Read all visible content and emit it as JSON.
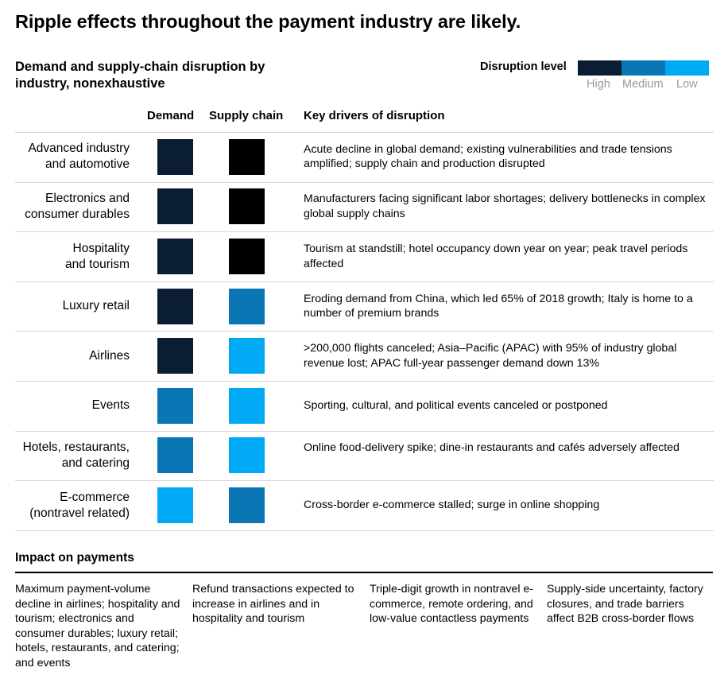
{
  "title": "Ripple effects throughout the payment industry are likely.",
  "subtitle": "Demand and supply-chain disruption by industry, nonexhaustive",
  "legend": {
    "label": "Disruption level",
    "levels": [
      {
        "name": "High",
        "color": "#0b1d33"
      },
      {
        "name": "Medium",
        "color": "#0a76b4"
      },
      {
        "name": "Low",
        "color": "#00a9f4"
      }
    ]
  },
  "headers": {
    "demand": "Demand",
    "supply": "Supply chain",
    "drivers": "Key drivers of disruption"
  },
  "level_colors": {
    "demand": {
      "High": "#0b1d33",
      "Medium": "#0a76b4",
      "Low": "#00a9f4"
    },
    "supply": {
      "High": "#000000",
      "Medium": "#0a76b4",
      "Low": "#00a9f4"
    }
  },
  "chart_data": {
    "type": "table",
    "columns": [
      "Demand",
      "Supply chain",
      "Key drivers of disruption"
    ],
    "rows": [
      {
        "industry": "Advanced industry and automotive",
        "label_lines": [
          "Advanced industry",
          "and automotive"
        ],
        "demand": "High",
        "supply": "High",
        "drivers": "Acute decline in global demand; existing vulnerabilities and trade tensions amplified; supply chain and production disrupted"
      },
      {
        "industry": "Electronics and consumer durables",
        "label_lines": [
          "Electronics and",
          "consumer durables"
        ],
        "demand": "High",
        "supply": "High",
        "drivers": "Manufacturers facing significant labor shortages; delivery bottlenecks in complex global supply chains"
      },
      {
        "industry": "Hospitality and tourism",
        "label_lines": [
          "Hospitality",
          "and tourism"
        ],
        "demand": "High",
        "supply": "High",
        "drivers": "Tourism at standstill; hotel occupancy down year on year; peak travel periods affected"
      },
      {
        "industry": "Luxury retail",
        "label_lines": [
          "Luxury retail"
        ],
        "demand": "High",
        "supply": "Medium",
        "drivers": "Eroding demand from China, which led 65% of 2018 growth; Italy is home to a number of premium brands"
      },
      {
        "industry": "Airlines",
        "label_lines": [
          "Airlines"
        ],
        "demand": "High",
        "supply": "Low",
        "drivers": ">200,000 flights canceled; Asia–Pacific (APAC) with 95% of industry global revenue lost; APAC full-year passenger demand down 13%"
      },
      {
        "industry": "Events",
        "label_lines": [
          "Events"
        ],
        "demand": "Medium",
        "supply": "Low",
        "drivers": "Sporting, cultural, and political events canceled or postponed"
      },
      {
        "industry": "Hotels, restaurants, and catering",
        "label_lines": [
          "Hotels, restaurants,",
          "and catering"
        ],
        "demand": "Medium",
        "supply": "Low",
        "drivers": "Online food-delivery spike; dine-in restaurants and cafés adversely affected"
      },
      {
        "industry": "E-commerce (nontravel related)",
        "label_lines": [
          "E-commerce",
          "(nontravel related)"
        ],
        "demand": "Low",
        "supply": "Medium",
        "drivers": "Cross-border e-commerce stalled; surge in online shopping"
      }
    ]
  },
  "impact": {
    "title": "Impact on payments",
    "items": [
      "Maximum payment-volume decline in airlines; hospitality and tourism; electronics and consumer durables; luxury retail; hotels, restaurants, and catering; and events",
      "Refund transactions expected to increase in airlines and in hospitality and tourism",
      "Triple-digit growth in nontravel e-commerce, remote ordering, and low-value contactless payments",
      "Supply-side uncertainty, factory closures, and trade barriers affect B2B cross-border flows"
    ]
  }
}
